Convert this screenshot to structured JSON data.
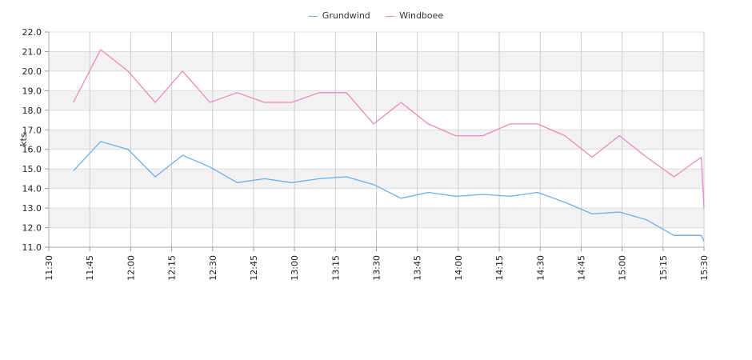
{
  "chart_data": {
    "type": "line",
    "ylabel": "kts",
    "ylim": [
      11.0,
      22.0
    ],
    "yticks": [
      "11.0",
      "12.0",
      "13.0",
      "14.0",
      "15.0",
      "16.0",
      "17.0",
      "18.0",
      "19.0",
      "20.0",
      "21.0",
      "22.0"
    ],
    "xticks": [
      "11:30",
      "11:45",
      "12:00",
      "12:15",
      "12:30",
      "12:45",
      "13:00",
      "13:15",
      "13:30",
      "13:45",
      "14:00",
      "14:15",
      "14:30",
      "14:45",
      "15:00",
      "15:15",
      "15:30"
    ],
    "xlim": [
      "11:30",
      "15:30"
    ],
    "grid": true,
    "legend_position": "top-center",
    "series": [
      {
        "name": "Grundwind",
        "color": "#6aaef0",
        "points": [
          [
            "11:39",
            14.9
          ],
          [
            "11:49",
            16.4
          ],
          [
            "11:59",
            16.0
          ],
          [
            "12:09",
            14.6
          ],
          [
            "12:19",
            15.7
          ],
          [
            "12:29",
            15.1
          ],
          [
            "12:39",
            14.3
          ],
          [
            "12:49",
            14.5
          ],
          [
            "12:59",
            14.3
          ],
          [
            "13:09",
            14.5
          ],
          [
            "13:19",
            14.6
          ],
          [
            "13:29",
            14.2
          ],
          [
            "13:39",
            13.5
          ],
          [
            "13:49",
            13.8
          ],
          [
            "13:59",
            13.6
          ],
          [
            "14:09",
            13.7
          ],
          [
            "14:19",
            13.6
          ],
          [
            "14:29",
            13.8
          ],
          [
            "14:39",
            13.3
          ],
          [
            "14:49",
            12.7
          ],
          [
            "14:59",
            12.8
          ],
          [
            "15:09",
            12.4
          ],
          [
            "15:19",
            11.6
          ],
          [
            "15:29",
            11.6
          ],
          [
            "15:30",
            11.3
          ]
        ]
      },
      {
        "name": "Windboee",
        "color": "#ee88bb",
        "points": [
          [
            "11:39",
            18.4
          ],
          [
            "11:49",
            21.1
          ],
          [
            "11:59",
            20.0
          ],
          [
            "12:09",
            18.4
          ],
          [
            "12:19",
            20.0
          ],
          [
            "12:29",
            18.4
          ],
          [
            "12:39",
            18.9
          ],
          [
            "12:49",
            18.4
          ],
          [
            "12:59",
            18.4
          ],
          [
            "13:09",
            18.9
          ],
          [
            "13:19",
            18.9
          ],
          [
            "13:29",
            17.3
          ],
          [
            "13:39",
            18.4
          ],
          [
            "13:49",
            17.3
          ],
          [
            "13:59",
            16.7
          ],
          [
            "14:09",
            16.7
          ],
          [
            "14:19",
            17.3
          ],
          [
            "14:29",
            17.3
          ],
          [
            "14:39",
            16.7
          ],
          [
            "14:49",
            15.6
          ],
          [
            "14:59",
            16.7
          ],
          [
            "15:09",
            15.6
          ],
          [
            "15:19",
            14.6
          ],
          [
            "15:29",
            15.6
          ],
          [
            "15:30",
            13.0
          ]
        ]
      }
    ]
  }
}
